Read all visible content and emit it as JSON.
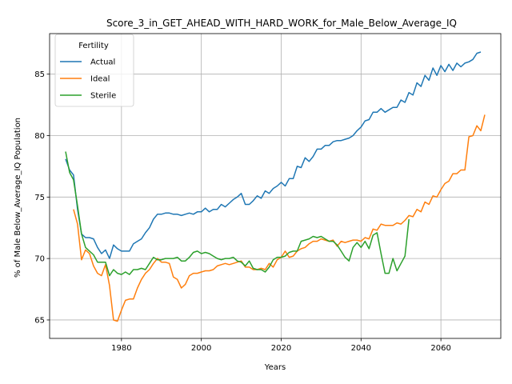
{
  "chart_data": {
    "type": "line",
    "title": "Score_3_in_GET_AHEAD_WITH_HARD_WORK_for_Male_Below_Average_IQ",
    "xlabel": "Years",
    "ylabel": "% of Male Below_Average_IQ Population",
    "xlim": [
      1962,
      2075
    ],
    "ylim": [
      63.5,
      88.3
    ],
    "xticks": [
      1980,
      2000,
      2020,
      2040,
      2060
    ],
    "yticks": [
      65,
      70,
      75,
      80,
      85
    ],
    "grid": true,
    "legend": {
      "title": "Fertility",
      "placement": "top-left"
    },
    "series": [
      {
        "name": "Actual",
        "color": "#1f77b4",
        "x_start": 1966,
        "values": [
          78.1,
          77.2,
          76.8,
          74.0,
          72.0,
          71.7,
          71.7,
          71.6,
          70.9,
          70.4,
          70.7,
          70.0,
          71.1,
          70.8,
          70.6,
          70.6,
          70.6,
          71.2,
          71.4,
          71.6,
          72.1,
          72.5,
          73.2,
          73.6,
          73.6,
          73.7,
          73.7,
          73.6,
          73.6,
          73.5,
          73.6,
          73.7,
          73.6,
          73.8,
          73.8,
          74.1,
          73.8,
          74.0,
          74.0,
          74.4,
          74.2,
          74.5,
          74.8,
          75.0,
          75.3,
          74.4,
          74.4,
          74.7,
          75.1,
          74.9,
          75.5,
          75.3,
          75.7,
          75.9,
          76.2,
          75.9,
          76.5,
          76.5,
          77.5,
          77.4,
          78.2,
          77.9,
          78.3,
          78.9,
          78.9,
          79.2,
          79.2,
          79.5,
          79.6,
          79.6,
          79.7,
          79.8,
          80.0,
          80.4,
          80.7,
          81.2,
          81.3,
          81.9,
          81.9,
          82.2,
          81.9,
          82.1,
          82.3,
          82.3,
          82.9,
          82.7,
          83.5,
          83.3,
          84.3,
          84.0,
          84.9,
          84.5,
          85.5,
          84.9,
          85.7,
          85.2,
          85.8,
          85.3,
          85.9,
          85.6,
          85.9,
          86.0,
          86.2,
          86.7,
          86.8
        ]
      },
      {
        "name": "Ideal",
        "color": "#ff7f0e",
        "x_start": 1968,
        "values": [
          74.0,
          72.8,
          69.9,
          70.7,
          70.4,
          69.4,
          68.8,
          68.6,
          69.5,
          67.8,
          65.0,
          64.9,
          65.8,
          66.6,
          66.7,
          66.7,
          67.6,
          68.3,
          68.8,
          69.1,
          69.6,
          70.0,
          69.7,
          69.7,
          69.6,
          68.5,
          68.3,
          67.6,
          67.9,
          68.6,
          68.8,
          68.8,
          68.9,
          69.0,
          69.0,
          69.1,
          69.4,
          69.5,
          69.6,
          69.5,
          69.6,
          69.7,
          69.8,
          69.3,
          69.3,
          69.1,
          69.1,
          69.2,
          69.1,
          69.6,
          69.3,
          69.9,
          70.1,
          70.6,
          70.1,
          70.2,
          70.6,
          70.8,
          70.9,
          71.2,
          71.4,
          71.4,
          71.6,
          71.5,
          71.4,
          71.5,
          71.0,
          71.4,
          71.3,
          71.4,
          71.5,
          71.5,
          71.4,
          71.7,
          71.6,
          72.4,
          72.3,
          72.8,
          72.7,
          72.7,
          72.7,
          72.9,
          72.8,
          73.1,
          73.5,
          73.4,
          74.0,
          73.8,
          74.6,
          74.4,
          75.1,
          75.0,
          75.6,
          76.1,
          76.3,
          76.9,
          76.9,
          77.2,
          77.2,
          79.9,
          80.0,
          80.8,
          80.4,
          81.7
        ]
      },
      {
        "name": "Sterile",
        "color": "#2ca02c",
        "x_start": 1966,
        "values": [
          78.7,
          77.0,
          76.4,
          74.3,
          72.0,
          70.9,
          70.6,
          70.3,
          69.7,
          69.7,
          69.7,
          68.6,
          69.1,
          68.8,
          68.7,
          68.9,
          68.7,
          69.1,
          69.1,
          69.2,
          69.1,
          69.6,
          70.1,
          69.9,
          69.9,
          70.0,
          70.0,
          70.0,
          70.1,
          69.8,
          69.8,
          70.1,
          70.5,
          70.6,
          70.4,
          70.5,
          70.4,
          70.2,
          70.0,
          69.9,
          70.0,
          70.0,
          70.1,
          69.8,
          69.7,
          69.4,
          69.8,
          69.2,
          69.1,
          69.1,
          68.9,
          69.3,
          69.9,
          70.1,
          70.1,
          70.2,
          70.5,
          70.6,
          70.6,
          71.4,
          71.5,
          71.6,
          71.8,
          71.7,
          71.8,
          71.6,
          71.4,
          71.4,
          71.1,
          70.6,
          70.1,
          69.8,
          70.9,
          71.3,
          70.9,
          71.4,
          70.8,
          71.9,
          72.1,
          70.4,
          68.8,
          68.8,
          70.0,
          69.0,
          69.6,
          70.2,
          73.2
        ]
      }
    ]
  }
}
